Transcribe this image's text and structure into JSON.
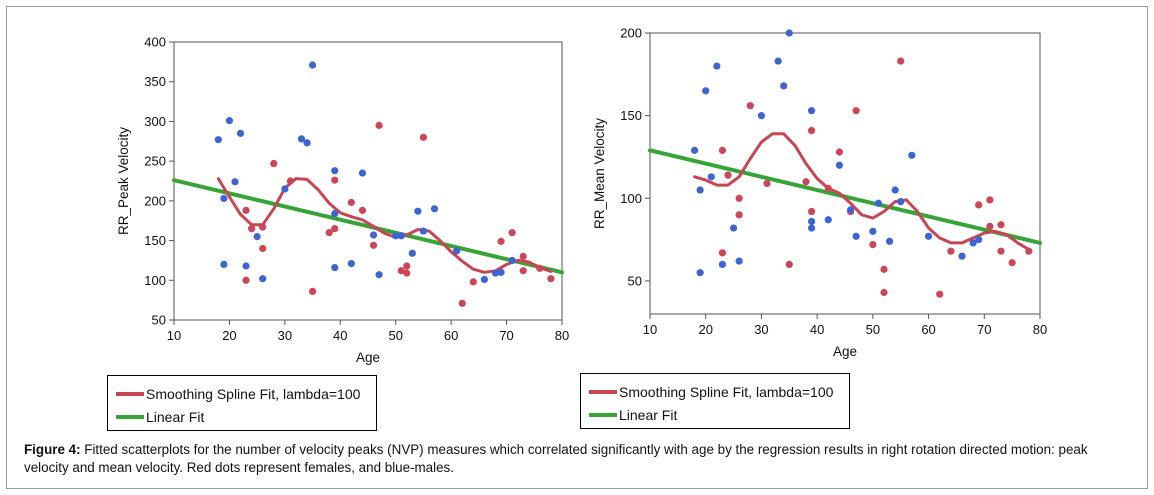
{
  "chart_data": [
    {
      "type": "scatter",
      "xlabel": "Age",
      "ylabel": "RR_Peak Velocity",
      "xlim": [
        10,
        80
      ],
      "ylim": [
        50,
        400
      ],
      "xticks": [
        10,
        20,
        30,
        40,
        50,
        60,
        70,
        80
      ],
      "yticks": [
        50,
        100,
        150,
        200,
        250,
        300,
        350,
        400
      ],
      "series": [
        {
          "name": "females",
          "color": "#cc4657",
          "points": [
            [
              23,
              100
            ],
            [
              23,
              188
            ],
            [
              24,
              165
            ],
            [
              26,
              167
            ],
            [
              26,
              140
            ],
            [
              28,
              247
            ],
            [
              31,
              225
            ],
            [
              35,
              86
            ],
            [
              38,
              160
            ],
            [
              39,
              165
            ],
            [
              39,
              226
            ],
            [
              42,
              198
            ],
            [
              44,
              188
            ],
            [
              46,
              144
            ],
            [
              47,
              295
            ],
            [
              51,
              112
            ],
            [
              52,
              109
            ],
            [
              52,
              118
            ],
            [
              55,
              280
            ],
            [
              62,
              71
            ],
            [
              64,
              98
            ],
            [
              69,
              149
            ],
            [
              71,
              160
            ],
            [
              73,
              130
            ],
            [
              73,
              112
            ],
            [
              76,
              115
            ],
            [
              78,
              102
            ]
          ]
        },
        {
          "name": "males",
          "color": "#3c64d2",
          "points": [
            [
              18,
              277
            ],
            [
              19,
              120
            ],
            [
              19,
              203
            ],
            [
              20,
              301
            ],
            [
              21,
              224
            ],
            [
              22,
              285
            ],
            [
              23,
              118
            ],
            [
              25,
              155
            ],
            [
              26,
              102
            ],
            [
              30,
              215
            ],
            [
              33,
              278
            ],
            [
              34,
              273
            ],
            [
              35,
              371
            ],
            [
              39,
              238
            ],
            [
              39,
              116
            ],
            [
              39,
              184
            ],
            [
              42,
              121
            ],
            [
              44,
              235
            ],
            [
              46,
              157
            ],
            [
              47,
              107
            ],
            [
              50,
              156
            ],
            [
              51,
              156
            ],
            [
              53,
              134
            ],
            [
              54,
              187
            ],
            [
              55,
              162
            ],
            [
              57,
              190
            ],
            [
              61,
              137
            ],
            [
              66,
              101
            ],
            [
              68,
              109
            ],
            [
              69,
              110
            ],
            [
              71,
              125
            ]
          ]
        },
        {
          "name": "Smoothing Spline Fit, lambda=100",
          "color": "#c94552",
          "curve": [
            [
              18,
              228
            ],
            [
              20,
              205
            ],
            [
              22,
              183
            ],
            [
              24,
              170
            ],
            [
              26,
              170
            ],
            [
              28,
              190
            ],
            [
              30,
              216
            ],
            [
              32,
              228
            ],
            [
              34,
              227
            ],
            [
              36,
              214
            ],
            [
              38,
              197
            ],
            [
              40,
              185
            ],
            [
              42,
              180
            ],
            [
              44,
              176
            ],
            [
              46,
              168
            ],
            [
              48,
              159
            ],
            [
              50,
              154
            ],
            [
              52,
              157
            ],
            [
              54,
              164
            ],
            [
              56,
              162
            ],
            [
              58,
              150
            ],
            [
              60,
              136
            ],
            [
              62,
              124
            ],
            [
              64,
              114
            ],
            [
              66,
              110
            ],
            [
              68,
              112
            ],
            [
              70,
              120
            ],
            [
              72,
              125
            ],
            [
              74,
              123
            ],
            [
              76,
              116
            ],
            [
              78,
              111
            ]
          ]
        },
        {
          "name": "Linear Fit",
          "color": "#37a437",
          "line": [
            [
              10,
              226
            ],
            [
              80,
              110
            ]
          ]
        }
      ]
    },
    {
      "type": "scatter",
      "xlabel": "Age",
      "ylabel": "RR_Mean Velocity",
      "xlim": [
        10,
        80
      ],
      "ylim": [
        30,
        200
      ],
      "xticks": [
        10,
        20,
        30,
        40,
        50,
        60,
        70,
        80
      ],
      "yticks": [
        50,
        100,
        150,
        200
      ],
      "series": [
        {
          "name": "females",
          "color": "#cc4657",
          "points": [
            [
              23,
              129
            ],
            [
              23,
              67
            ],
            [
              24,
              114
            ],
            [
              26,
              100
            ],
            [
              26,
              90
            ],
            [
              28,
              156
            ],
            [
              31,
              109
            ],
            [
              35,
              60
            ],
            [
              38,
              110
            ],
            [
              39,
              141
            ],
            [
              39,
              92
            ],
            [
              42,
              106
            ],
            [
              44,
              128
            ],
            [
              46,
              92
            ],
            [
              47,
              153
            ],
            [
              50,
              72
            ],
            [
              52,
              57
            ],
            [
              52,
              43
            ],
            [
              55,
              183
            ],
            [
              62,
              42
            ],
            [
              64,
              68
            ],
            [
              69,
              96
            ],
            [
              71,
              99
            ],
            [
              71,
              83
            ],
            [
              73,
              84
            ],
            [
              73,
              68
            ],
            [
              75,
              61
            ],
            [
              78,
              68
            ]
          ]
        },
        {
          "name": "males",
          "color": "#3c64d2",
          "points": [
            [
              18,
              129
            ],
            [
              19,
              55
            ],
            [
              19,
              105
            ],
            [
              20,
              165
            ],
            [
              21,
              113
            ],
            [
              22,
              180
            ],
            [
              23,
              60
            ],
            [
              25,
              82
            ],
            [
              26,
              62
            ],
            [
              30,
              150
            ],
            [
              33,
              183
            ],
            [
              34,
              168
            ],
            [
              35,
              200
            ],
            [
              39,
              153
            ],
            [
              39,
              86
            ],
            [
              39,
              82
            ],
            [
              42,
              87
            ],
            [
              44,
              120
            ],
            [
              46,
              93
            ],
            [
              47,
              77
            ],
            [
              50,
              80
            ],
            [
              51,
              97
            ],
            [
              53,
              74
            ],
            [
              54,
              105
            ],
            [
              55,
              98
            ],
            [
              57,
              126
            ],
            [
              60,
              77
            ],
            [
              66,
              65
            ],
            [
              68,
              73
            ],
            [
              69,
              75
            ]
          ]
        },
        {
          "name": "Smoothing Spline Fit, lambda=100",
          "color": "#c94552",
          "curve": [
            [
              18,
              113
            ],
            [
              20,
              111
            ],
            [
              22,
              108
            ],
            [
              24,
              108
            ],
            [
              26,
              113
            ],
            [
              28,
              124
            ],
            [
              30,
              134
            ],
            [
              32,
              139
            ],
            [
              34,
              139
            ],
            [
              36,
              132
            ],
            [
              38,
              121
            ],
            [
              40,
              112
            ],
            [
              42,
              106
            ],
            [
              44,
              103
            ],
            [
              46,
              97
            ],
            [
              48,
              90
            ],
            [
              50,
              88
            ],
            [
              52,
              92
            ],
            [
              54,
              98
            ],
            [
              56,
              99
            ],
            [
              58,
              92
            ],
            [
              60,
              82
            ],
            [
              62,
              76
            ],
            [
              64,
              73
            ],
            [
              66,
              73
            ],
            [
              68,
              76
            ],
            [
              70,
              79
            ],
            [
              72,
              80
            ],
            [
              74,
              78
            ],
            [
              76,
              73
            ],
            [
              78,
              69
            ]
          ]
        },
        {
          "name": "Linear Fit",
          "color": "#37a437",
          "line": [
            [
              10,
              129
            ],
            [
              80,
              73
            ]
          ]
        }
      ]
    }
  ],
  "legends": [
    {
      "spline_label": "Smoothing Spline Fit, lambda=100",
      "linear_label": "Linear Fit",
      "spline_color": "#c94552",
      "linear_color": "#37a437"
    },
    {
      "spline_label": "Smoothing Spline Fit, lambda=100",
      "linear_label": "Linear Fit",
      "spline_color": "#c94552",
      "linear_color": "#37a437"
    }
  ],
  "caption": {
    "label": "Figure 4:",
    "text": " Fitted scatterplots for the number of velocity peaks (NVP) measures which correlated significantly with age by the regression results in right rotation directed motion: peak velocity and mean velocity. Red dots represent females, and blue-males."
  }
}
